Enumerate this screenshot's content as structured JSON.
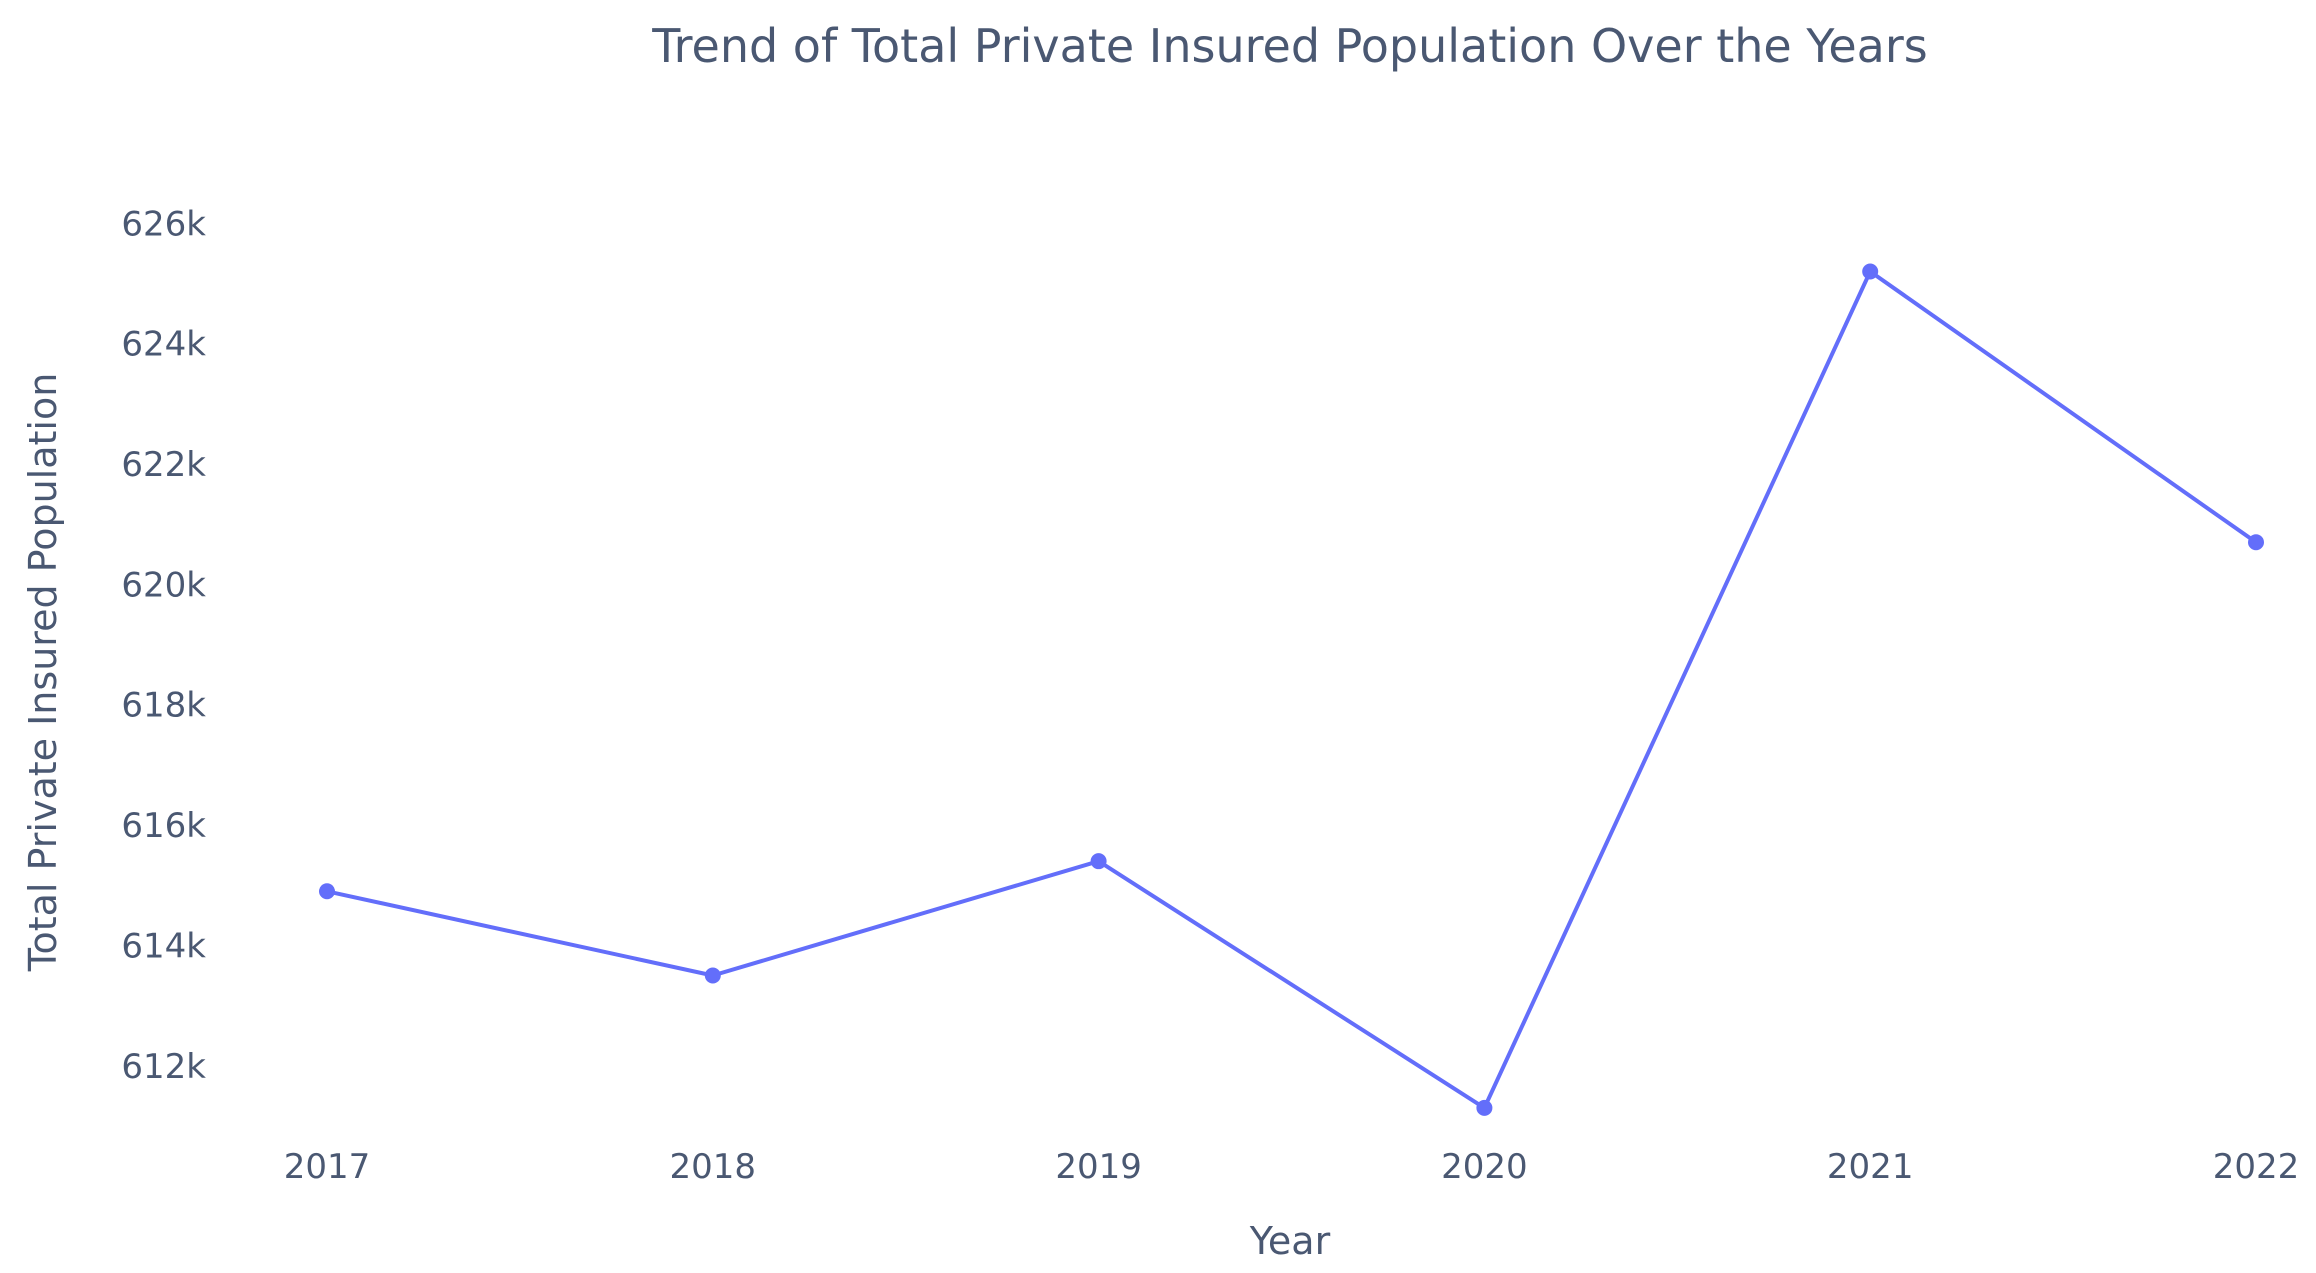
{
  "chart_data": {
    "type": "line",
    "title": "Trend of Total Private Insured Population  Over the Years",
    "xlabel": "Year",
    "ylabel": "Total Private Insured Population",
    "x": [
      2017,
      2018,
      2019,
      2020,
      2021,
      2022
    ],
    "x_tick_labels": [
      "2017",
      "2018",
      "2019",
      "2020",
      "2021",
      "2022"
    ],
    "series": [
      {
        "values": [
          614900,
          613500,
          615400,
          611300,
          625200,
          620700
        ],
        "color": "#636efa",
        "markers": true
      }
    ],
    "y_ticks": [
      612000,
      614000,
      616000,
      618000,
      620000,
      622000,
      624000,
      626000
    ],
    "y_tick_labels": [
      "612k",
      "614k",
      "616k",
      "618k",
      "620k",
      "622k",
      "624k",
      "626k"
    ],
    "ylim": [
      610600,
      627950
    ],
    "xlim": [
      2017,
      2022
    ],
    "grid": false,
    "legend": "none"
  }
}
